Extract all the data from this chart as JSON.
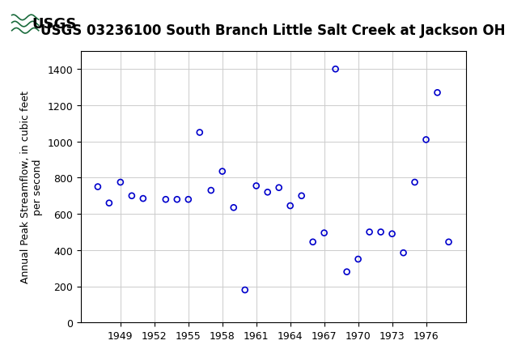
{
  "title": "USGS 03236100 South Branch Little Salt Creek at Jackson OH",
  "ylabel": "Annual Peak Streamflow, in cubic feet\nper second",
  "years": [
    1947,
    1948,
    1949,
    1950,
    1951,
    1953,
    1954,
    1955,
    1956,
    1957,
    1958,
    1959,
    1960,
    1961,
    1962,
    1963,
    1964,
    1965,
    1966,
    1967,
    1968,
    1969,
    1970,
    1971,
    1972,
    1973,
    1974,
    1975,
    1976,
    1977,
    1978
  ],
  "values": [
    750,
    660,
    775,
    700,
    685,
    680,
    680,
    680,
    1050,
    730,
    835,
    635,
    180,
    755,
    720,
    745,
    645,
    700,
    445,
    495,
    1400,
    280,
    350,
    500,
    500,
    490,
    385,
    775,
    1010,
    1270,
    445
  ],
  "marker_color": "#0000CC",
  "marker_size": 5,
  "marker_lw": 1.2,
  "ylim": [
    0,
    1500
  ],
  "xlim": [
    1945.5,
    1979.5
  ],
  "yticks": [
    0,
    200,
    400,
    600,
    800,
    1000,
    1200,
    1400
  ],
  "xticks": [
    1949,
    1952,
    1955,
    1958,
    1961,
    1964,
    1967,
    1970,
    1973,
    1976
  ],
  "grid_color": "#cccccc",
  "bg_color": "#ffffff",
  "header_color": "#1a6b3c",
  "title_fontsize": 12,
  "axis_label_fontsize": 9,
  "tick_fontsize": 9
}
